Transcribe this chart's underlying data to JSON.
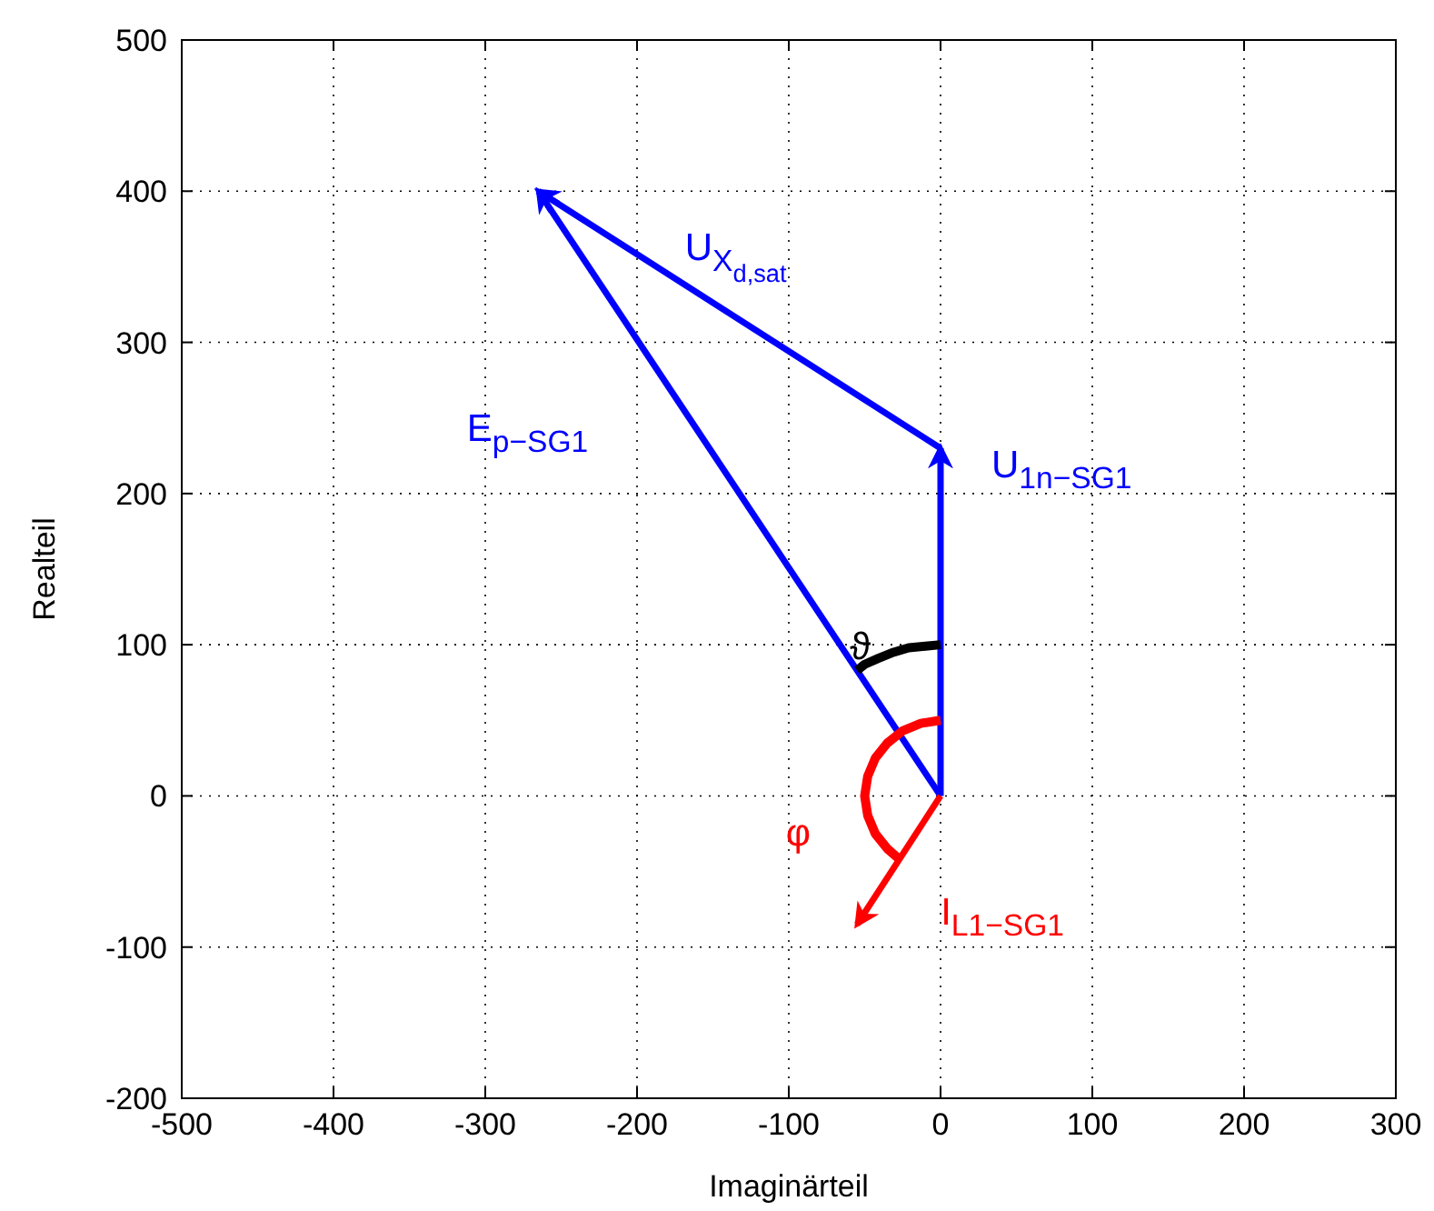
{
  "chart_data": {
    "type": "line",
    "xlabel": "Imaginärteil",
    "ylabel": "Realteil",
    "xlim": [
      -500,
      300
    ],
    "xticks": [
      -500,
      -400,
      -300,
      -200,
      -100,
      0,
      100,
      200,
      300
    ],
    "ylim": [
      -200,
      500
    ],
    "yticks": [
      -200,
      -100,
      0,
      100,
      200,
      300,
      400,
      500
    ],
    "grid": true,
    "legend": false,
    "series": [
      {
        "name": "E$_{p−SG1}$",
        "color": "#0000ff",
        "x": [
          0,
          -265
        ],
        "values": [
          0,
          400
        ]
      },
      {
        "name": "U$_{X}$$_{d,sat}$",
        "color": "#0000ff",
        "x": [
          0,
          -265
        ],
        "values": [
          230,
          400
        ]
      },
      {
        "name": "U$_{1n−SG1}$",
        "color": "#0000ff",
        "x": [
          0,
          0
        ],
        "values": [
          0,
          230
        ]
      },
      {
        "name": "I$_{L1−SG1}$",
        "color": "#ff0000",
        "x": [
          0,
          -55
        ],
        "values": [
          0,
          -85
        ]
      },
      {
        "name": "ϑ",
        "color": "#000000",
        "x": [
          0,
          -10,
          -21,
          -31,
          -41,
          -50,
          -55
        ],
        "values": [
          100,
          99,
          98,
          95,
          91,
          87,
          83
        ]
      },
      {
        "name": "φ",
        "color": "#ff0000",
        "x": [
          0,
          -13,
          -25,
          -35,
          -43,
          -48,
          -50,
          -48,
          -43,
          -35,
          -27
        ],
        "values": [
          50,
          48,
          43,
          35,
          25,
          13,
          0,
          -13,
          -25,
          -35,
          -42
        ]
      }
    ]
  }
}
